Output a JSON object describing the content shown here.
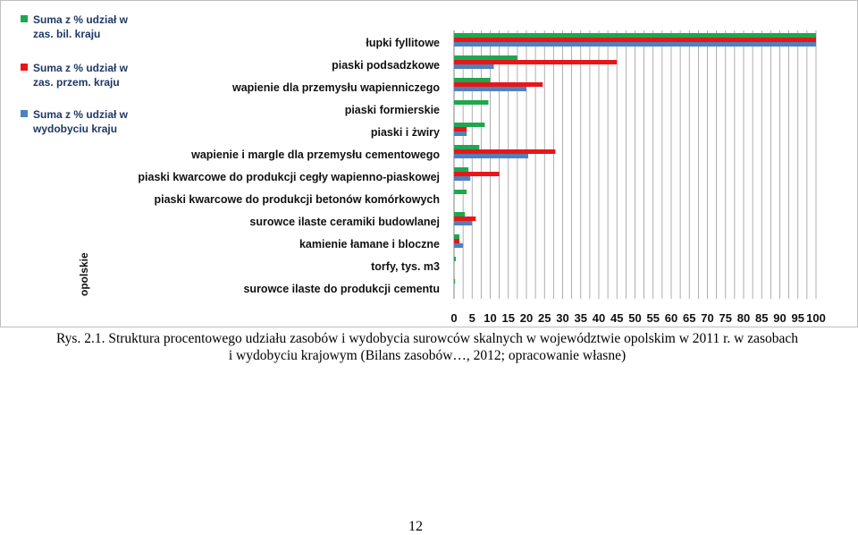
{
  "chart_data": {
    "type": "bar",
    "orientation": "horizontal",
    "side_label": "opolskie",
    "categories": [
      "łupki fyllitowe",
      "piaski podsadzkowe",
      "wapienie dla przemysłu wapienniczego",
      "piaski formierskie",
      "piaski i żwiry",
      "wapienie i margle dla przemysłu cementowego",
      "piaski kwarcowe do produkcji cegły wapienno-piaskowej",
      "piaski kwarcowe do produkcji betonów komórkowych",
      "surowce ilaste ceramiki budowlanej",
      "kamienie łamane i bloczne",
      "torfy, tys. m3",
      "surowce ilaste do produkcji cementu"
    ],
    "series": [
      {
        "name": "Suma z % udział w zas. bil. kraju",
        "color": "#1fa750",
        "values": [
          100,
          17.5,
          10,
          9.5,
          8.5,
          7,
          4,
          3.5,
          3,
          1.5,
          0.5,
          0.3
        ]
      },
      {
        "name": "Suma z % udział w zas. przem. kraju",
        "color": "#e8161b",
        "values": [
          100,
          45,
          24.5,
          0,
          3.5,
          28,
          12.5,
          0,
          6,
          1.5,
          0,
          0
        ]
      },
      {
        "name": "Suma z % udział w wydobyciu kraju",
        "color": "#4f81bd",
        "values": [
          100,
          11,
          20,
          0,
          3.5,
          20.5,
          4.5,
          0,
          5,
          2.5,
          0,
          0
        ]
      }
    ],
    "xlim": [
      0,
      100
    ],
    "xticks": [
      "0",
      "5",
      "10",
      "15",
      "20",
      "25",
      "30",
      "35",
      "40",
      "45",
      "50",
      "55",
      "60",
      "65",
      "70",
      "75",
      "80",
      "85",
      "90",
      "95",
      "100"
    ],
    "grid": true,
    "legend_position": "left"
  },
  "legend": {
    "items": [
      {
        "line1": "Suma z % udział w",
        "line2": "zas. bil. kraju",
        "color": "#1fa750"
      },
      {
        "line1": "Suma z % udział w",
        "line2": "zas. przem. kraju",
        "color": "#e8161b"
      },
      {
        "line1": "Suma z % udział w",
        "line2": "wydobyciu kraju",
        "color": "#4f81bd"
      }
    ]
  },
  "caption": {
    "line1": "Rys. 2.1. Struktura procentowego udziału zasobów i wydobycia surowców skalnych w województwie opolskim w 2011 r. w zasobach",
    "line2": "i wydobyciu krajowym (Bilans zasobów…, 2012; opracowanie własne)"
  },
  "page_number": "12"
}
